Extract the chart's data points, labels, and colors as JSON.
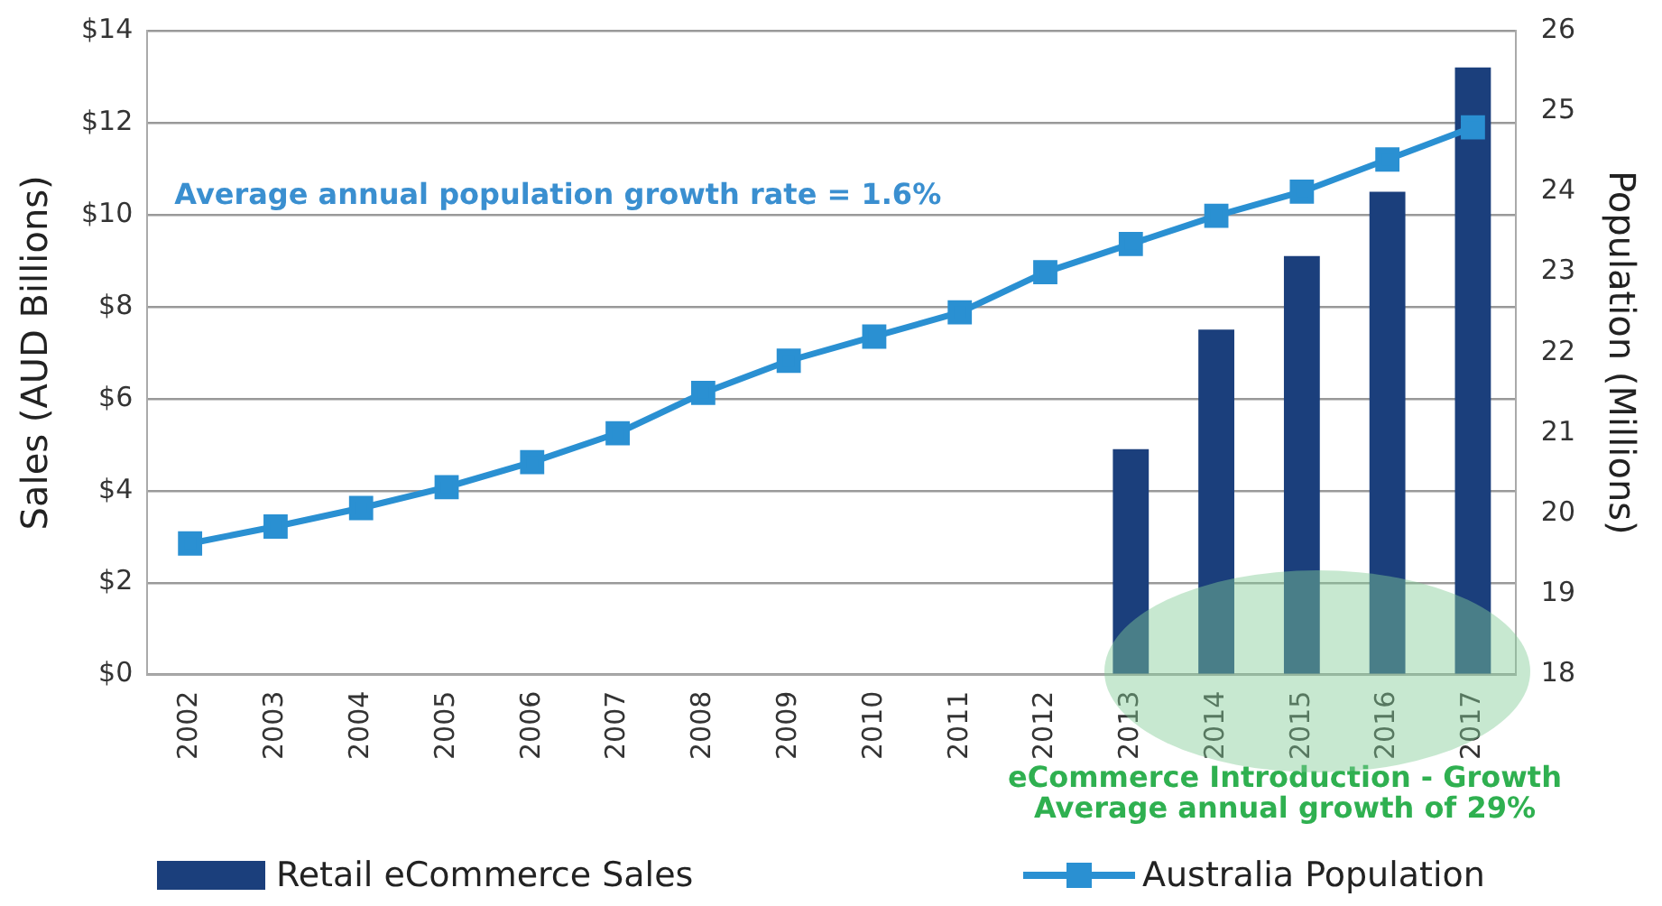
{
  "chart_data": {
    "type": "bar",
    "categories": [
      "2002",
      "2003",
      "2004",
      "2005",
      "2006",
      "2007",
      "2008",
      "2009",
      "2010",
      "2011",
      "2012",
      "2013",
      "2014",
      "2015",
      "2016",
      "2017"
    ],
    "series": [
      {
        "name": "Retail eCommerce Sales",
        "color": "#1b3f7c",
        "values": [
          null,
          null,
          null,
          null,
          null,
          null,
          null,
          null,
          null,
          null,
          null,
          4.9,
          7.5,
          9.1,
          10.5,
          13.2
        ]
      },
      {
        "name": "Australia Population",
        "type": "line",
        "axis": "y2",
        "color": "#2a90d2",
        "marker": "square",
        "values": [
          19.63,
          19.84,
          20.07,
          20.33,
          20.64,
          21.0,
          21.5,
          21.9,
          22.2,
          22.5,
          23.0,
          23.35,
          23.7,
          24.0,
          24.4,
          24.8
        ]
      }
    ],
    "ylabel": "Sales (AUD Billions)",
    "y2label": "Population (Millions)",
    "ylim": [
      0,
      14
    ],
    "yticks": [
      {
        "value": 0,
        "label": "$0"
      },
      {
        "value": 2,
        "label": "$2"
      },
      {
        "value": 4,
        "label": "$4"
      },
      {
        "value": 6,
        "label": "$6"
      },
      {
        "value": 8,
        "label": "$8"
      },
      {
        "value": 10,
        "label": "$10"
      },
      {
        "value": 12,
        "label": "$12"
      },
      {
        "value": 14,
        "label": "$14"
      }
    ],
    "y2lim": [
      18,
      26
    ],
    "y2ticks": [
      18,
      19,
      20,
      21,
      22,
      23,
      24,
      25,
      26
    ],
    "grid": "y",
    "legend": "bottom",
    "annotations": [
      "Average annual population growth rate = 1.6%",
      "eCommerce Introduction - Growth",
      "Average annual growth of 29%"
    ]
  }
}
